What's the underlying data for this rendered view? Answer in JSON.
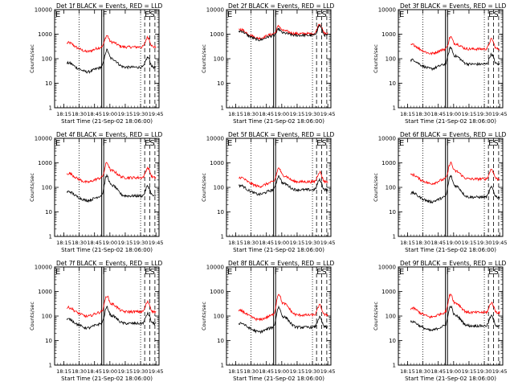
{
  "figure": {
    "ylabel": "Counts/sec",
    "xlabel": "Start Time (21-Sep-02 18:06:00)",
    "xticks": [
      "18:15",
      "18:30",
      "18:45",
      "19:00",
      "19:15",
      "19:30",
      "19:45"
    ],
    "yticks": [
      "1",
      "10",
      "100",
      "1000",
      "10000"
    ],
    "marker_labels": [
      "E",
      "F",
      "ES"
    ]
  },
  "chart_data": [
    {
      "type": "line",
      "title": "Det 1f BLACK = Events, RED = LLD",
      "ylim": [
        1,
        10000
      ],
      "ylog": true,
      "series": [
        {
          "color": "#ff0000",
          "level": 300,
          "peak": 800
        },
        {
          "color": "#000000",
          "level": 45,
          "peak": 200
        }
      ]
    },
    {
      "type": "line",
      "title": "Det 2f BLACK = Events, RED = LLD",
      "ylim": [
        1,
        10000
      ],
      "ylog": true,
      "series": [
        {
          "color": "#ff0000",
          "level": 1050,
          "peak": 2000
        },
        {
          "color": "#000000",
          "level": 900,
          "peak": 1500
        }
      ]
    },
    {
      "type": "line",
      "title": "Det 3f BLACK = Events, RED = LLD",
      "ylim": [
        1,
        10000
      ],
      "ylog": true,
      "series": [
        {
          "color": "#ff0000",
          "level": 250,
          "peak": 700
        },
        {
          "color": "#000000",
          "level": 60,
          "peak": 250
        }
      ]
    },
    {
      "type": "line",
      "title": "Det 4f BLACK = Events, RED = LLD",
      "ylim": [
        1,
        10000
      ],
      "ylog": true,
      "series": [
        {
          "color": "#ff0000",
          "level": 250,
          "peak": 900
        },
        {
          "color": "#000000",
          "level": 45,
          "peak": 260
        }
      ]
    },
    {
      "type": "line",
      "title": "Det 5f BLACK = Events, RED = LLD",
      "ylim": [
        1,
        10000
      ],
      "ylog": true,
      "series": [
        {
          "color": "#ff0000",
          "level": 170,
          "peak": 550
        },
        {
          "color": "#000000",
          "level": 80,
          "peak": 260
        }
      ]
    },
    {
      "type": "line",
      "title": "Det 6f BLACK = Events, RED = LLD",
      "ylim": [
        1,
        10000
      ],
      "ylog": true,
      "series": [
        {
          "color": "#ff0000",
          "level": 220,
          "peak": 900
        },
        {
          "color": "#000000",
          "level": 40,
          "peak": 250
        }
      ]
    },
    {
      "type": "line",
      "title": "Det 7f BLACK = Events, RED = LLD",
      "ylim": [
        1,
        10000
      ],
      "ylog": true,
      "series": [
        {
          "color": "#ff0000",
          "level": 150,
          "peak": 600
        },
        {
          "color": "#000000",
          "level": 50,
          "peak": 200
        }
      ]
    },
    {
      "type": "line",
      "title": "Det 8f BLACK = Events, RED = LLD",
      "ylim": [
        1,
        10000
      ],
      "ylog": true,
      "series": [
        {
          "color": "#ff0000",
          "level": 110,
          "peak": 700
        },
        {
          "color": "#000000",
          "level": 35,
          "peak": 200
        }
      ]
    },
    {
      "type": "line",
      "title": "Det 9f BLACK = Events, RED = LLD",
      "ylim": [
        1,
        10000
      ],
      "ylog": true,
      "series": [
        {
          "color": "#ff0000",
          "level": 140,
          "peak": 700
        },
        {
          "color": "#000000",
          "level": 40,
          "peak": 220
        }
      ]
    }
  ]
}
